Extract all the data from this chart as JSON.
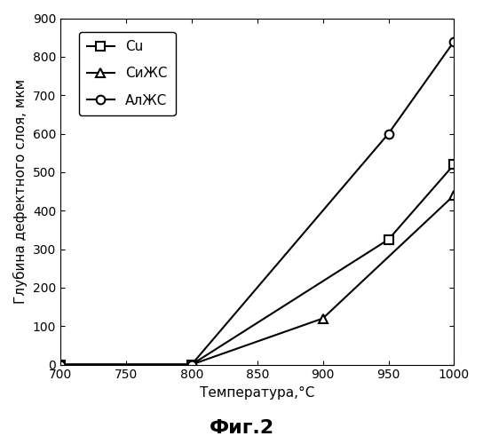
{
  "xlabel": "Температура,°C",
  "ylabel": "Глубина дефектного слоя, мкм",
  "caption": "Фиг.2",
  "xlim": [
    700,
    1000
  ],
  "ylim": [
    0,
    900
  ],
  "xticks": [
    700,
    750,
    800,
    850,
    900,
    950,
    1000
  ],
  "yticks": [
    0,
    100,
    200,
    300,
    400,
    500,
    600,
    700,
    800,
    900
  ],
  "series": [
    {
      "label": "Cu",
      "x": [
        700,
        800,
        950,
        1000
      ],
      "y": [
        0,
        0,
        325,
        520
      ],
      "marker": "s"
    },
    {
      "label": "СиЖС",
      "x": [
        700,
        800,
        900,
        1000
      ],
      "y": [
        0,
        0,
        120,
        440
      ],
      "marker": "^"
    },
    {
      "label": "АлЖС",
      "x": [
        700,
        800,
        950,
        1000
      ],
      "y": [
        0,
        0,
        600,
        840
      ],
      "marker": "o"
    }
  ],
  "background_color": "#ffffff"
}
